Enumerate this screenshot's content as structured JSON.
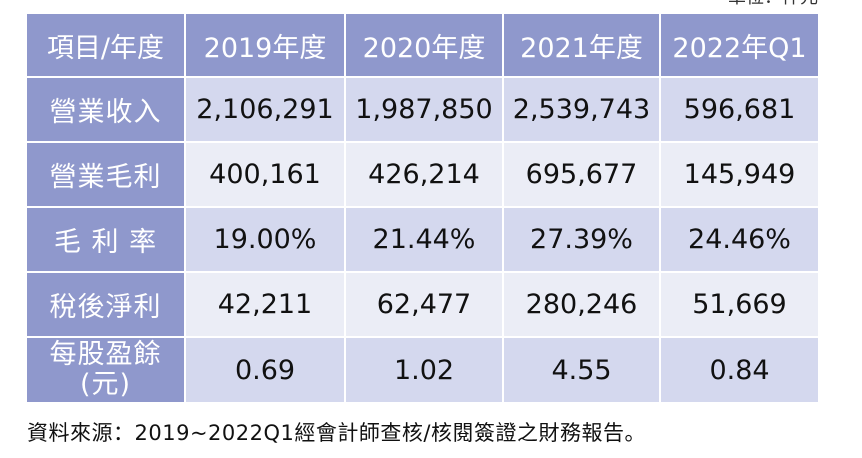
{
  "unit_label": "單位：仟元",
  "table": {
    "headers": [
      "項目/年度",
      "2019年度",
      "2020年度",
      "2021年度",
      "2022年Q1"
    ],
    "rows": [
      {
        "label": "營業收入",
        "values": [
          "2,106,291",
          "1,987,850",
          "2,539,743",
          "596,681"
        ]
      },
      {
        "label": "營業毛利",
        "values": [
          "400,161",
          "426,214",
          "695,677",
          "145,949"
        ]
      },
      {
        "label": "毛 利 率",
        "values": [
          "19.00%",
          "21.44%",
          "27.39%",
          "24.46%"
        ]
      },
      {
        "label": "稅後淨利",
        "values": [
          "42,211",
          "62,477",
          "280,246",
          "51,669"
        ]
      },
      {
        "label": "每股盈餘(元)",
        "values": [
          "0.69",
          "1.02",
          "4.55",
          "0.84"
        ]
      }
    ]
  },
  "source_note": "資料來源：2019~2022Q1經會計師查核/核閱簽證之財務報告。",
  "colors": {
    "header_bg": "#8f98cc",
    "row_light": "#ebedf6",
    "row_dark": "#d4d8ee"
  }
}
